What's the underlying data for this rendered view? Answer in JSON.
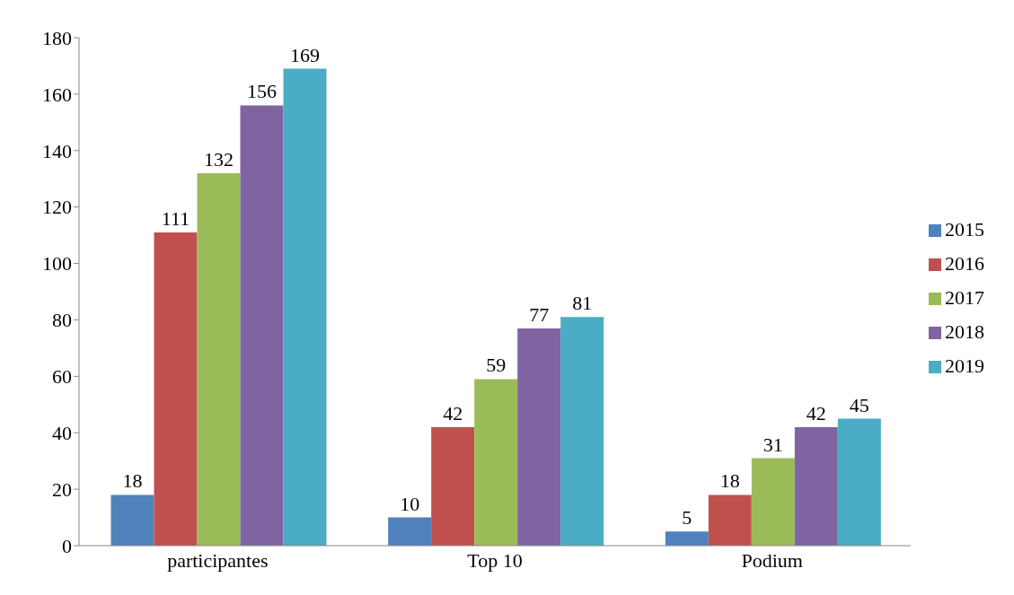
{
  "chart_data": {
    "type": "bar",
    "categories": [
      "participantes",
      "Top 10",
      "Podium"
    ],
    "series": [
      {
        "name": "2015",
        "color": "#4f81bd",
        "values": [
          18,
          10,
          5
        ]
      },
      {
        "name": "2016",
        "color": "#c0504d",
        "values": [
          111,
          42,
          18
        ]
      },
      {
        "name": "2017",
        "color": "#9bbb59",
        "values": [
          132,
          59,
          31
        ]
      },
      {
        "name": "2018",
        "color": "#8064a2",
        "values": [
          156,
          77,
          42
        ]
      },
      {
        "name": "2019",
        "color": "#4bacc6",
        "values": [
          169,
          81,
          45
        ]
      }
    ],
    "ylim": [
      0,
      180
    ],
    "yticks": [
      0,
      20,
      40,
      60,
      80,
      100,
      120,
      140,
      160,
      180
    ],
    "grid": false,
    "legend": "right",
    "data_labels": true
  }
}
